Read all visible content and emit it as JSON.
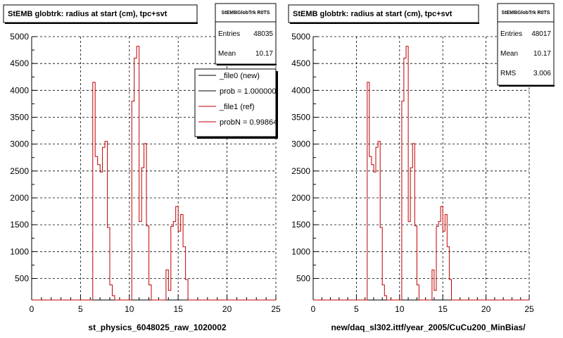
{
  "chart_data": [
    {
      "type": "bar",
      "title": "StEMB globtrk: radius at start (cm), tpc+svt",
      "xlabel": "st_physics_6048025_raw_1020002",
      "ylabel": "",
      "xlim": [
        0,
        25
      ],
      "ylim": [
        100,
        5000
      ],
      "grid": true,
      "x_ticks": [
        "0",
        "5",
        "10",
        "15",
        "20",
        "25"
      ],
      "y_ticks": [
        "500",
        "1000",
        "1500",
        "2000",
        "2500",
        "3000",
        "3500",
        "4000",
        "4500",
        "5000"
      ],
      "stats": {
        "name": "StEMBGlobTrk R0TS",
        "rows": [
          {
            "label": "Entries",
            "value": "48035"
          },
          {
            "label": "Mean",
            "value": "10.17"
          }
        ]
      },
      "legend": {
        "position": "top-right",
        "entries": [
          {
            "label": "_file0 (new)",
            "color": "#000000"
          },
          {
            "label": "prob = 1.000000",
            "color": "#000000"
          },
          {
            "label": "_file1 (ref)",
            "color": "#c00000"
          },
          {
            "label": "probN = 0.998640",
            "color": "#c00000"
          }
        ]
      },
      "series": [
        {
          "name": "_file1 (ref)",
          "color": "#c00000",
          "x": [
            6.25,
            6.5,
            6.75,
            7.0,
            7.25,
            7.5,
            7.75,
            8.0,
            8.25,
            10.25,
            10.5,
            10.75,
            11.0,
            11.25,
            11.5,
            11.75,
            12.0,
            13.75,
            14.0,
            14.25,
            14.5,
            14.75,
            15.0,
            15.25,
            15.5,
            15.75
          ],
          "values": [
            4150,
            2770,
            2620,
            2480,
            2940,
            3050,
            1450,
            380,
            180,
            3800,
            4600,
            4820,
            1560,
            2560,
            3010,
            1480,
            380,
            660,
            280,
            1470,
            1560,
            1840,
            1380,
            1690,
            1090,
            480
          ]
        }
      ]
    },
    {
      "type": "bar",
      "title": "StEMB globtrk: radius at start (cm), tpc+svt",
      "xlabel": "new/daq_sl302.ittf/year_2005/CuCu200_MinBias/",
      "ylabel": "",
      "xlim": [
        0,
        25
      ],
      "ylim": [
        100,
        5000
      ],
      "grid": true,
      "x_ticks": [
        "0",
        "5",
        "10",
        "15",
        "20",
        "25"
      ],
      "y_ticks": [
        "500",
        "1000",
        "1500",
        "2000",
        "2500",
        "3000",
        "3500",
        "4000",
        "4500",
        "5000"
      ],
      "stats": {
        "name": "StEMBGlobTrk R0TS",
        "rows": [
          {
            "label": "Entries",
            "value": "48017"
          },
          {
            "label": "Mean",
            "value": "10.17"
          },
          {
            "label": "RMS",
            "value": "3.006"
          }
        ]
      },
      "series": [
        {
          "name": "",
          "color": "#c00000",
          "x": [
            6.25,
            6.5,
            6.75,
            7.0,
            7.25,
            7.5,
            7.75,
            8.0,
            8.25,
            10.25,
            10.5,
            10.75,
            11.0,
            11.25,
            11.5,
            11.75,
            12.0,
            13.75,
            14.0,
            14.25,
            14.5,
            14.75,
            15.0,
            15.25,
            15.5,
            15.75
          ],
          "values": [
            4150,
            2770,
            2620,
            2480,
            2940,
            3050,
            1450,
            380,
            180,
            3800,
            4600,
            4820,
            1560,
            2560,
            3010,
            1480,
            380,
            660,
            280,
            1470,
            1560,
            1840,
            1380,
            1690,
            1090,
            480
          ]
        }
      ]
    }
  ]
}
